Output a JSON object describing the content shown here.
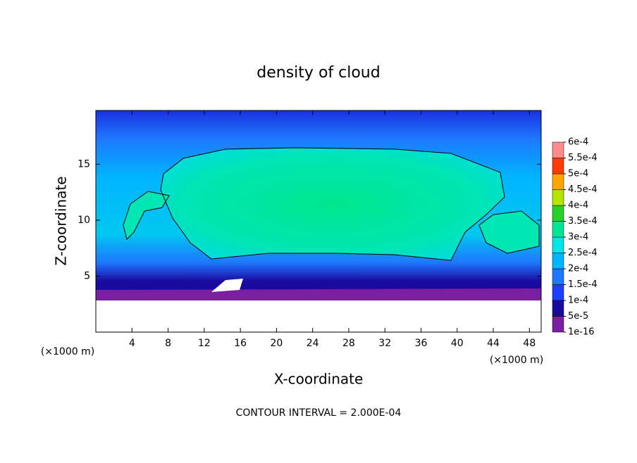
{
  "chart_data": {
    "type": "contour",
    "title": "density of cloud",
    "x_label": "X-coordinate",
    "y_label": "Z-coordinate",
    "x_unit": "(×1000 m)",
    "y_unit": "(×1000 m)",
    "note": "CONTOUR INTERVAL = 2.000E-04",
    "xlim": [
      0,
      49.3
    ],
    "ylim": [
      0,
      19.8
    ],
    "xticks": [
      4,
      8,
      12,
      16,
      20,
      24,
      28,
      32,
      36,
      40,
      44,
      48
    ],
    "yticks": [
      5,
      10,
      15
    ],
    "colorbar": {
      "lim": [
        1e-16,
        0.0006
      ],
      "ticks": [
        {
          "value": 1e-16,
          "label": "1e-16"
        },
        {
          "value": 5e-05,
          "label": "5e-5"
        },
        {
          "value": 0.0001,
          "label": "1e-4"
        },
        {
          "value": 0.00015,
          "label": "1.5e-4"
        },
        {
          "value": 0.0002,
          "label": "2e-4"
        },
        {
          "value": 0.00025,
          "label": "2.5e-4"
        },
        {
          "value": 0.0003,
          "label": "3e-4"
        },
        {
          "value": 0.00035,
          "label": "3.5e-4"
        },
        {
          "value": 0.0004,
          "label": "4e-4"
        },
        {
          "value": 0.00045,
          "label": "4.5e-4"
        },
        {
          "value": 0.0005,
          "label": "5e-4"
        },
        {
          "value": 0.00055,
          "label": "5.5e-4"
        },
        {
          "value": 0.0006,
          "label": "6e-4"
        }
      ],
      "colors": [
        "#7b1fa2",
        "#1a0aa0",
        "#1f3cff",
        "#1e78ff",
        "#00b4ff",
        "#00e6e6",
        "#00e696",
        "#28d228",
        "#b4e600",
        "#ffa500",
        "#ff3c00",
        "#ff8c8c"
      ]
    }
  }
}
